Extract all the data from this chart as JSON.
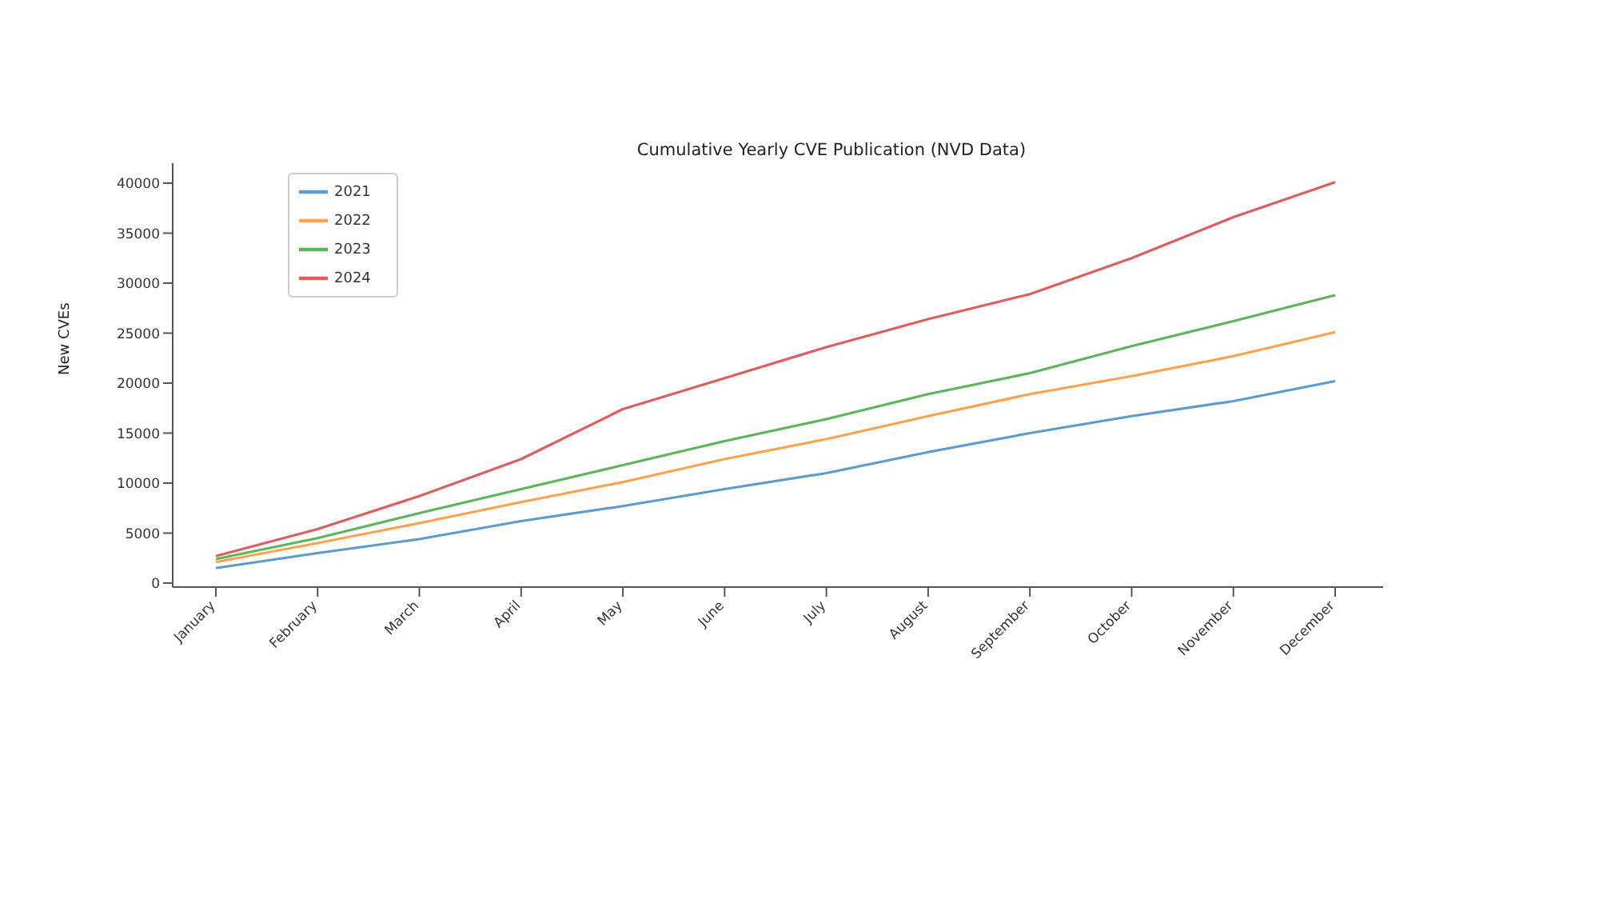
{
  "chart_data": {
    "type": "line",
    "title": "Cumulative Yearly CVE Publication (NVD Data)",
    "ylabel": "New CVEs",
    "categories": [
      "January",
      "February",
      "March",
      "April",
      "May",
      "June",
      "July",
      "August",
      "September",
      "October",
      "November",
      "December"
    ],
    "series": [
      {
        "name": "2021",
        "color": "#5b9bd0",
        "values": [
          1500,
          3000,
          4400,
          6200,
          7700,
          9400,
          11000,
          13100,
          15000,
          16700,
          18200,
          20200
        ]
      },
      {
        "name": "2022",
        "color": "#ffa24f",
        "values": [
          2100,
          4000,
          6000,
          8100,
          10100,
          12400,
          14400,
          16700,
          18900,
          20700,
          22700,
          25100
        ]
      },
      {
        "name": "2023",
        "color": "#5cb55c",
        "values": [
          2400,
          4500,
          7000,
          9400,
          11800,
          14200,
          16400,
          18900,
          21000,
          23700,
          26200,
          28800
        ]
      },
      {
        "name": "2024",
        "color": "#dc5f5f",
        "values": [
          2700,
          5400,
          8700,
          12400,
          17400,
          20500,
          23600,
          26400,
          28900,
          32500,
          36600,
          40100
        ]
      }
    ],
    "ylim": [
      -400,
      42000
    ],
    "yticks": [
      0,
      5000,
      10000,
      15000,
      20000,
      25000,
      30000,
      35000,
      40000
    ],
    "grid": false,
    "legend": "top left",
    "marker": "none",
    "line_style": "solid"
  }
}
